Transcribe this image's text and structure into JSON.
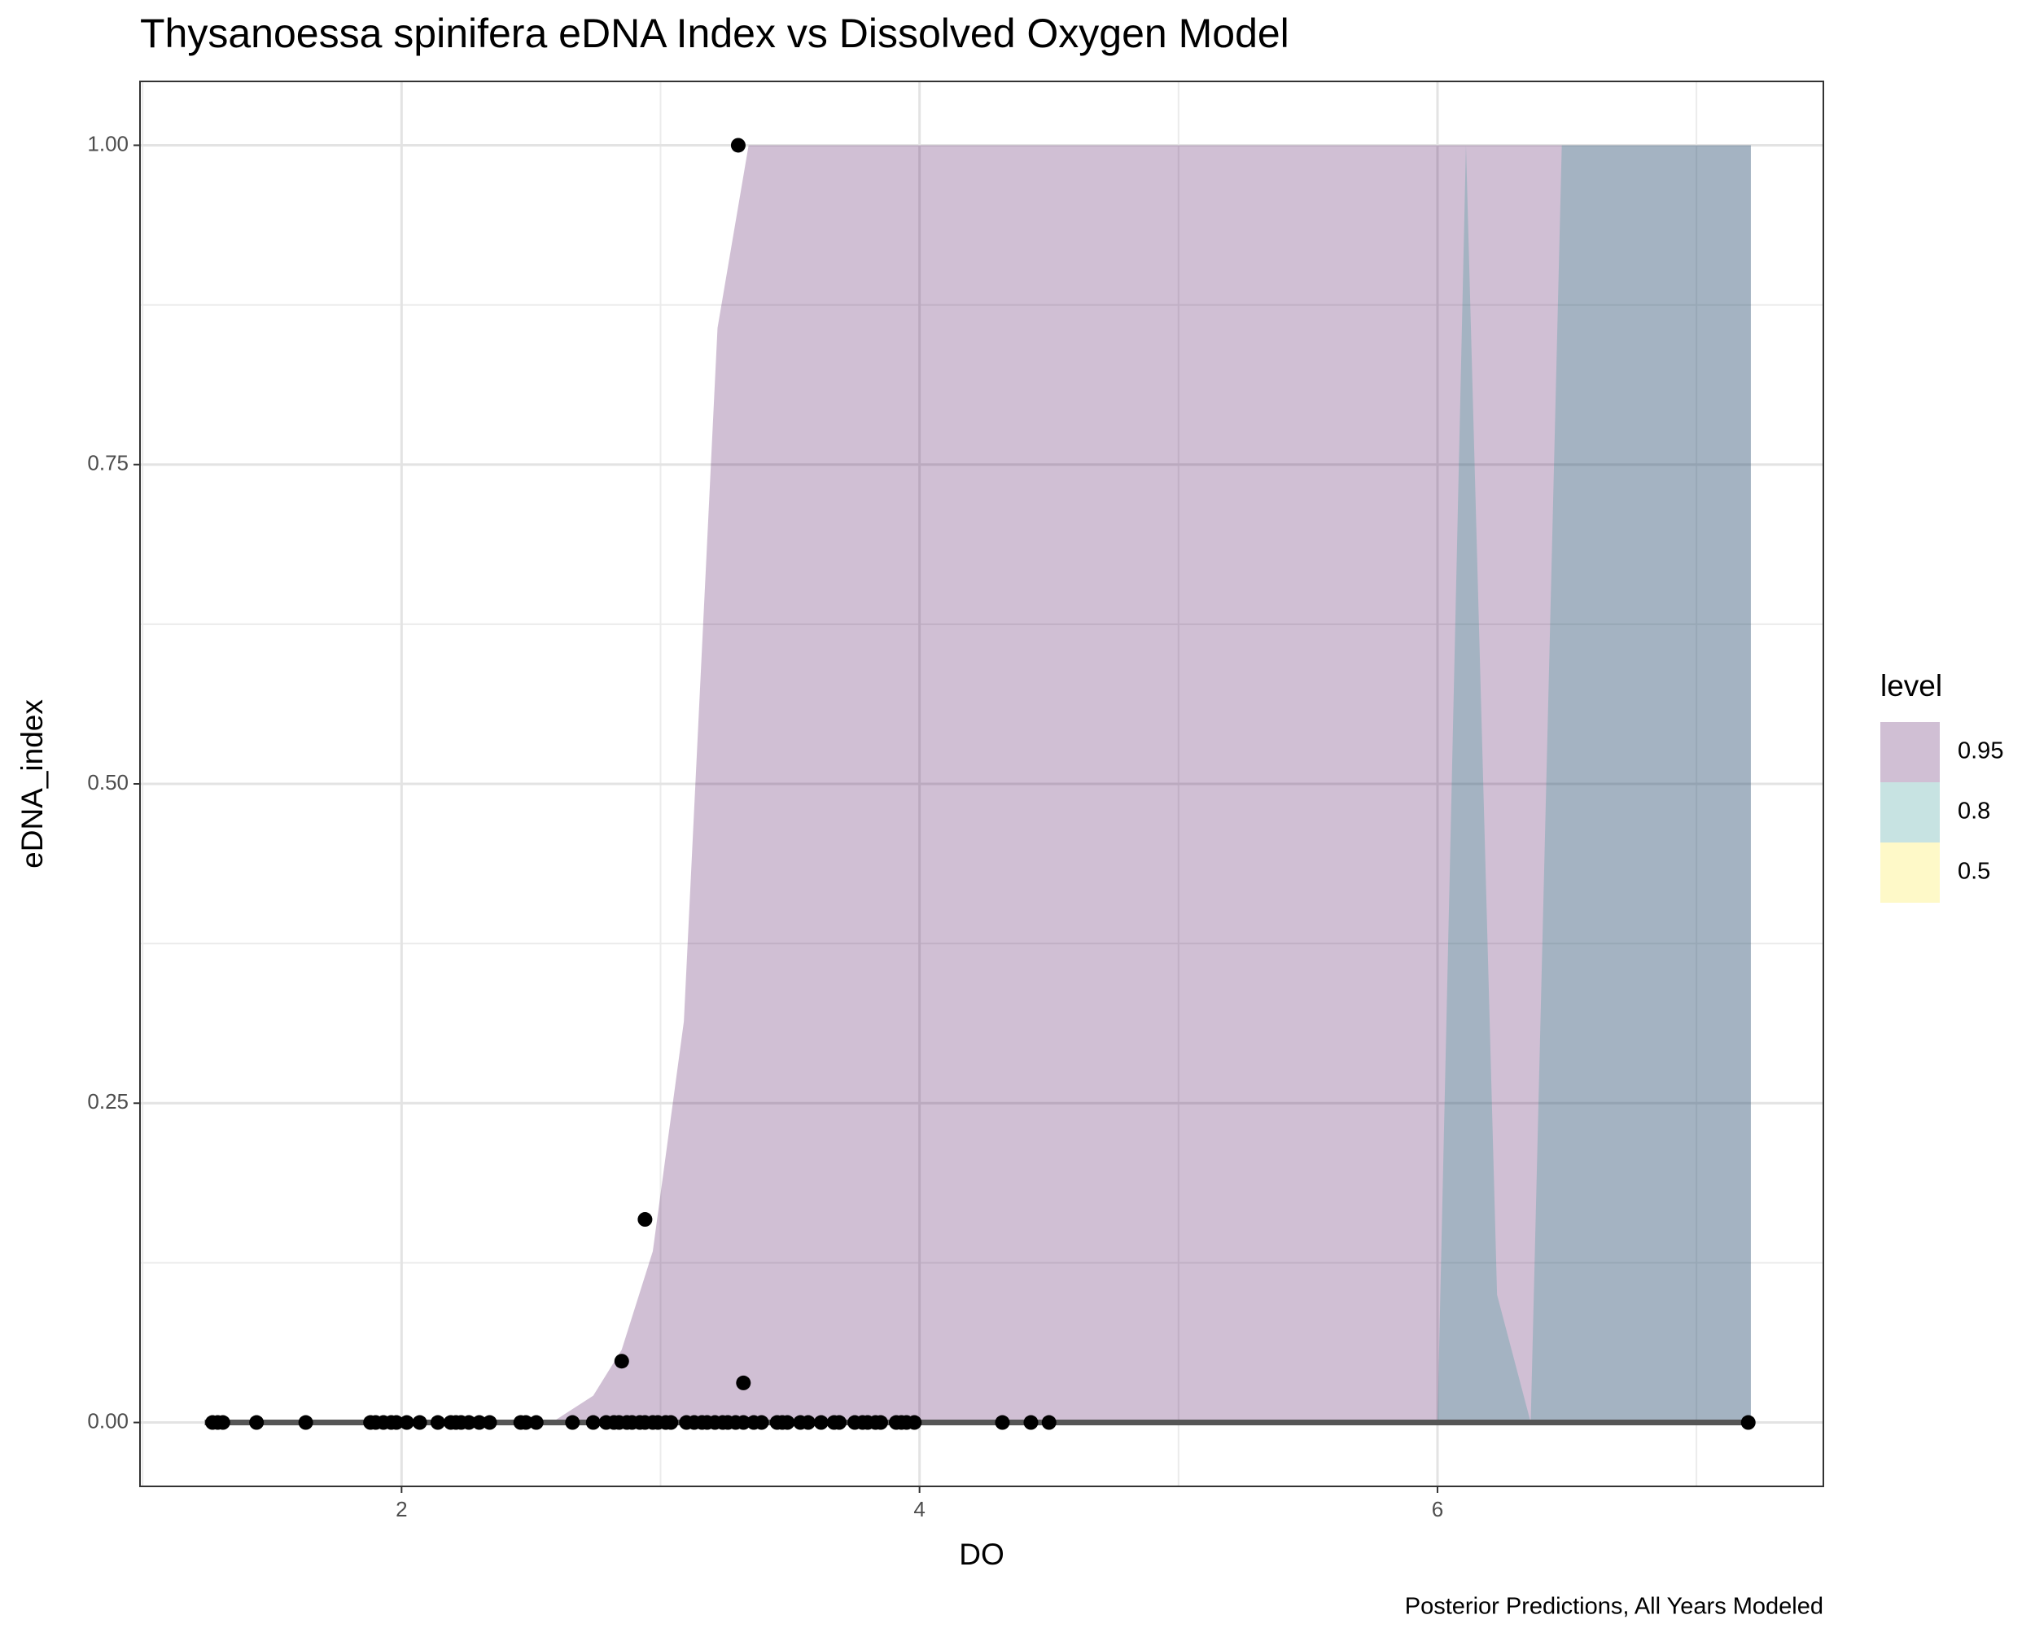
{
  "chart_data": {
    "type": "ribbon",
    "title": "Thysanoessa spinifera eDNA Index vs Dissolved Oxygen Model",
    "x_label": "DO",
    "y_label": "eDNA_index",
    "caption": "Posterior Predictions, All Years Modeled",
    "legend_title": "level",
    "legend_position": "right",
    "alpha": 0.25,
    "grid": true,
    "xlim": [
      0.99,
      7.49
    ],
    "ylim": [
      -0.05,
      1.05
    ],
    "xticks": [
      2,
      4,
      6
    ],
    "yticks": [
      {
        "value": 0,
        "label": "0.00"
      },
      {
        "value": 0.25,
        "label": "0.25"
      },
      {
        "value": 0.5,
        "label": "0.50"
      },
      {
        "value": 0.75,
        "label": "0.75"
      },
      {
        "value": 1,
        "label": "1.00"
      }
    ],
    "series": [
      {
        "name": "0.95",
        "color": "#440154",
        "x": [
          1.24,
          2.58,
          2.74,
          2.85,
          2.97,
          3.09,
          3.22,
          3.34,
          7.21
        ],
        "lower": [
          0,
          0,
          0,
          0,
          0,
          0,
          0,
          0,
          0
        ],
        "upper": [
          0,
          0,
          0.021,
          0.057,
          0.134,
          0.314,
          0.857,
          1,
          1
        ]
      },
      {
        "name": "0.8",
        "color": "#21908C",
        "x": [
          6.0,
          6.11,
          6.23,
          6.36,
          6.48,
          7.21
        ],
        "lower": [
          0,
          0,
          0,
          0,
          0,
          0
        ],
        "upper": [
          0,
          1,
          0.1,
          0,
          1,
          1
        ]
      },
      {
        "name": "0.5",
        "color": "#FDE725",
        "x": [
          1.24,
          7.21
        ],
        "lower": [
          0,
          0
        ],
        "upper": [
          0,
          0
        ]
      }
    ],
    "median_line": {
      "color": "#555555",
      "x": [
        1.24,
        7.21
      ],
      "y": [
        0,
        0
      ]
    },
    "scatter": {
      "color": "#000000",
      "x": [
        1.27,
        1.29,
        1.31,
        1.44,
        1.63,
        1.88,
        1.9,
        1.93,
        1.96,
        1.98,
        2.02,
        2.07,
        2.14,
        2.19,
        2.21,
        2.23,
        2.26,
        2.3,
        2.34,
        2.46,
        2.48,
        2.52,
        2.66,
        2.74,
        2.79,
        2.82,
        2.84,
        2.87,
        2.89,
        2.92,
        2.94,
        2.97,
        2.99,
        3.02,
        3.04,
        3.1,
        3.13,
        3.16,
        3.18,
        3.21,
        3.24,
        3.26,
        3.29,
        3.32,
        3.36,
        3.39,
        3.45,
        3.47,
        3.49,
        3.54,
        3.57,
        3.62,
        3.67,
        3.69,
        3.75,
        3.78,
        3.8,
        3.83,
        3.85,
        3.91,
        3.93,
        3.95,
        3.98,
        4.32,
        4.43,
        4.5,
        7.2,
        3.3,
        2.94,
        2.85,
        3.32
      ],
      "y": [
        0,
        0,
        0,
        0,
        0,
        0,
        0,
        0,
        0,
        0,
        0,
        0,
        0,
        0,
        0,
        0,
        0,
        0,
        0,
        0,
        0,
        0,
        0,
        0,
        0,
        0,
        0,
        0,
        0,
        0,
        0,
        0,
        0,
        0,
        0,
        0,
        0,
        0,
        0,
        0,
        0,
        0,
        0,
        0,
        0,
        0,
        0,
        0,
        0,
        0,
        0,
        0,
        0,
        0,
        0,
        0,
        0,
        0,
        0,
        0,
        0,
        0,
        0,
        0,
        0,
        0,
        0,
        1,
        0.159,
        0.048,
        0.031
      ]
    }
  }
}
